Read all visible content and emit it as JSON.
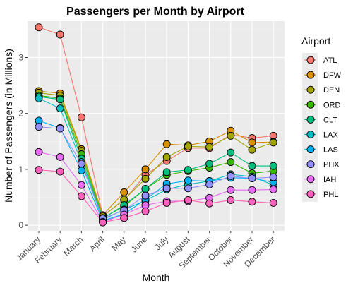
{
  "chart_data": {
    "type": "line",
    "title": "Passengers per Month by Airport",
    "xlabel": "Month",
    "ylabel": "Number of Passengers (in Millions)",
    "categories": [
      "January",
      "February",
      "March",
      "April",
      "May",
      "June",
      "July",
      "August",
      "September",
      "October",
      "November",
      "December"
    ],
    "y_ticks": [
      "0",
      "1",
      "2",
      "3"
    ],
    "ylim": [
      -0.1,
      3.65
    ],
    "grid": true,
    "legend_title": "Airport",
    "legend_position": "right",
    "series": [
      {
        "name": "ATL",
        "color": "#F8766D",
        "values": [
          3.54,
          3.41,
          1.93,
          0.17,
          0.45,
          0.9,
          1.15,
          1.38,
          1.38,
          1.62,
          1.56,
          1.6
        ]
      },
      {
        "name": "DFW",
        "color": "#D89000",
        "values": [
          2.4,
          2.36,
          1.36,
          0.18,
          0.59,
          1.0,
          1.45,
          1.43,
          1.5,
          1.69,
          1.48,
          1.49
        ]
      },
      {
        "name": "DEN",
        "color": "#A3A500",
        "values": [
          2.37,
          2.32,
          1.33,
          0.16,
          0.46,
          0.83,
          1.22,
          1.41,
          1.4,
          1.6,
          1.35,
          1.48
        ]
      },
      {
        "name": "ORD",
        "color": "#39B600",
        "values": [
          2.32,
          2.27,
          1.27,
          0.13,
          0.34,
          0.65,
          0.9,
          0.97,
          1.03,
          1.13,
          0.93,
          0.97
        ]
      },
      {
        "name": "CLT",
        "color": "#00BF7D",
        "values": [
          2.3,
          2.25,
          1.19,
          0.12,
          0.36,
          0.65,
          0.95,
          0.99,
          1.1,
          1.3,
          1.06,
          1.06
        ]
      },
      {
        "name": "LAX",
        "color": "#00BFC4",
        "values": [
          2.27,
          2.09,
          1.13,
          0.1,
          0.28,
          0.44,
          0.64,
          0.73,
          0.79,
          0.91,
          0.87,
          0.72
        ]
      },
      {
        "name": "LAS",
        "color": "#00B0F6",
        "values": [
          1.87,
          1.74,
          0.98,
          0.08,
          0.2,
          0.46,
          0.74,
          0.8,
          0.79,
          0.85,
          0.84,
          0.77
        ]
      },
      {
        "name": "PHX",
        "color": "#9590FF",
        "values": [
          1.76,
          1.73,
          1.1,
          0.12,
          0.27,
          0.53,
          0.66,
          0.66,
          0.73,
          0.88,
          0.84,
          0.86
        ]
      },
      {
        "name": "IAH",
        "color": "#E76BF3",
        "values": [
          1.31,
          1.22,
          0.72,
          0.06,
          0.19,
          0.36,
          0.43,
          0.43,
          0.49,
          0.63,
          0.63,
          0.64
        ]
      },
      {
        "name": "PHL",
        "color": "#FF62BC",
        "values": [
          0.99,
          0.96,
          0.52,
          0.05,
          0.13,
          0.25,
          0.4,
          0.45,
          0.39,
          0.45,
          0.42,
          0.4
        ]
      }
    ]
  }
}
